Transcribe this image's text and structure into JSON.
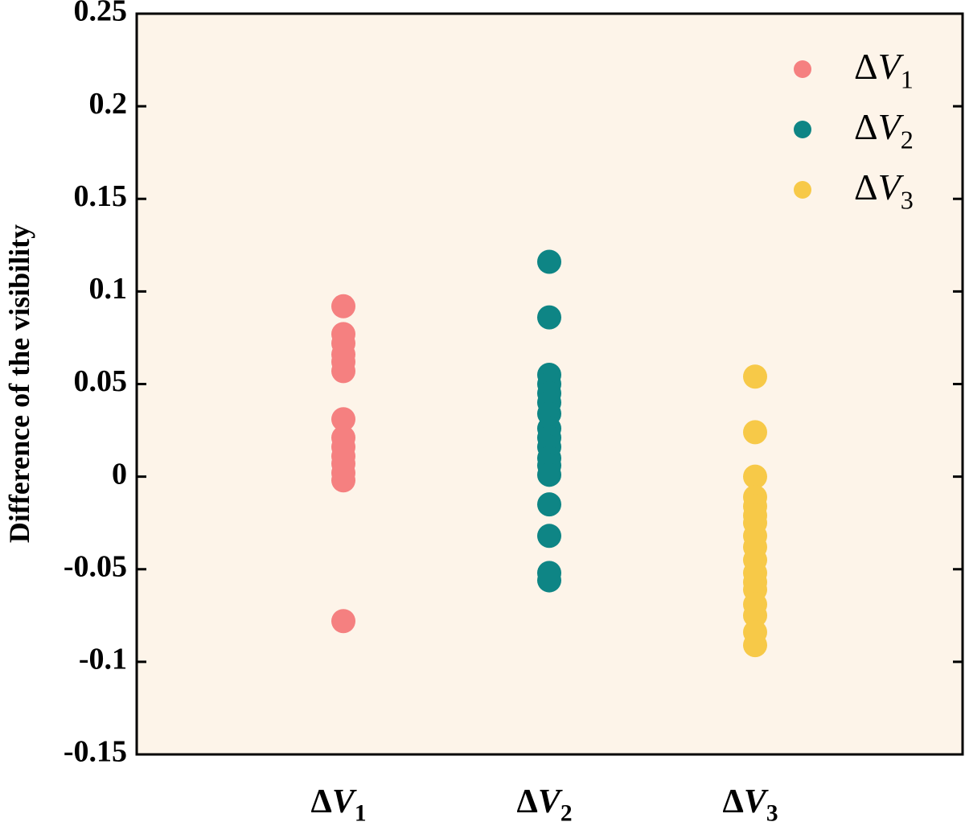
{
  "chart_data": {
    "type": "scatter",
    "title": "",
    "xlabel": "",
    "ylabel": "Difference of the visibility",
    "ylim": [
      -0.15,
      0.25
    ],
    "yticks": [
      {
        "value": 0.25,
        "label": "0.25"
      },
      {
        "value": 0.2,
        "label": "0.2"
      },
      {
        "value": 0.15,
        "label": "0.15"
      },
      {
        "value": 0.1,
        "label": "0.1"
      },
      {
        "value": 0.05,
        "label": "0.05"
      },
      {
        "value": 0,
        "label": "0"
      },
      {
        "value": -0.05,
        "label": "-0.05"
      },
      {
        "value": -0.1,
        "label": "-0.1"
      },
      {
        "value": -0.15,
        "label": "-0.15"
      }
    ],
    "grid": false,
    "legend_position": "top-right",
    "categories": [
      {
        "base": "ΔV",
        "sub": "1"
      },
      {
        "base": "ΔV",
        "sub": "2"
      },
      {
        "base": "ΔV",
        "sub": "3"
      }
    ],
    "background_color": "#fdf4e9",
    "series": [
      {
        "name": {
          "base": "ΔV",
          "sub": "1"
        },
        "color": "#f58080",
        "category_index": 0,
        "values": [
          0.092,
          0.077,
          0.072,
          0.066,
          0.062,
          0.057,
          0.031,
          0.021,
          0.016,
          0.011,
          0.007,
          0.002,
          -0.002,
          -0.078
        ]
      },
      {
        "name": {
          "base": "ΔV",
          "sub": "2"
        },
        "color": "#0e8585",
        "category_index": 1,
        "values": [
          0.116,
          0.086,
          0.055,
          0.05,
          0.045,
          0.04,
          0.034,
          0.026,
          0.021,
          0.016,
          0.01,
          0.006,
          0.001,
          -0.015,
          -0.032,
          -0.052,
          -0.056
        ]
      },
      {
        "name": {
          "base": "ΔV",
          "sub": "3"
        },
        "color": "#f7c948",
        "category_index": 2,
        "values": [
          0.054,
          0.024,
          0.0,
          -0.011,
          -0.016,
          -0.021,
          -0.025,
          -0.032,
          -0.038,
          -0.045,
          -0.052,
          -0.057,
          -0.061,
          -0.069,
          -0.075,
          -0.084,
          -0.091
        ]
      }
    ]
  }
}
